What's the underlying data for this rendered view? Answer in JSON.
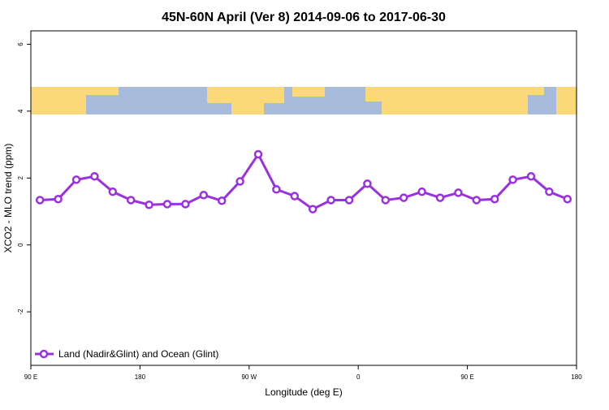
{
  "chart_data": {
    "type": "line",
    "title": "45N-60N April (Ver 8)   2014-09-06 to 2017-06-30",
    "xlabel": "Longitude (deg E)",
    "ylabel": "XCO2 - MLO trend (ppm)",
    "xlim": [
      90,
      540
    ],
    "ylim": [
      -3.6,
      6.4
    ],
    "xticks": [
      {
        "value": 90,
        "label": "90 E"
      },
      {
        "value": 180,
        "label": "180"
      },
      {
        "value": 270,
        "label": "90 W"
      },
      {
        "value": 360,
        "label": "0"
      },
      {
        "value": 450,
        "label": "90 E"
      },
      {
        "value": 540,
        "label": "180"
      }
    ],
    "yticks": [
      -2,
      0,
      2,
      4,
      6
    ],
    "legend": "bottom-left",
    "series": [
      {
        "name": "Land (Nadir&Glint) and Ocean (Glint)",
        "color": "#9b30e0",
        "x": [
          97.5,
          112.5,
          127.5,
          142.5,
          157.5,
          172.5,
          187.5,
          202.5,
          217.5,
          232.5,
          247.5,
          262.5,
          277.5,
          292.5,
          307.5,
          322.5,
          337.5,
          352.5,
          367.5,
          382.5,
          397.5,
          412.5,
          427.5,
          442.5,
          457.5,
          472.5,
          487.5,
          502.5,
          517.5,
          532.5
        ],
        "values": [
          1.34,
          1.37,
          1.95,
          2.05,
          1.59,
          1.34,
          1.2,
          1.22,
          1.22,
          1.49,
          1.32,
          1.9,
          2.71,
          1.66,
          1.46,
          1.07,
          1.34,
          1.34,
          1.83,
          1.34,
          1.41,
          1.59,
          1.41,
          1.56,
          1.34,
          1.37,
          1.95,
          2.05,
          1.59,
          1.37
        ]
      }
    ]
  }
}
